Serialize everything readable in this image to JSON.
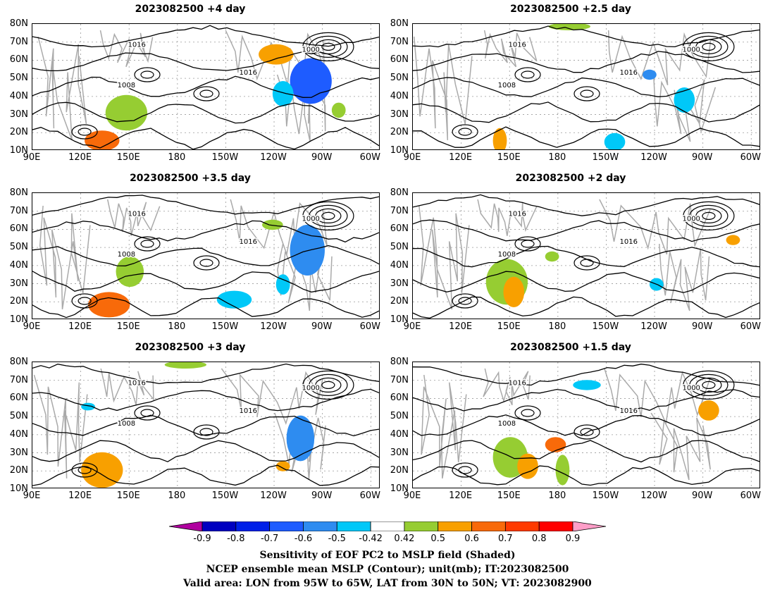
{
  "panels": [
    {
      "title": "2023082500  +4 day"
    },
    {
      "title": "2023082500  +2.5  day"
    },
    {
      "title": "2023082500  +3.5  day"
    },
    {
      "title": "2023082500  +2  day"
    },
    {
      "title": "2023082500  +3  day"
    },
    {
      "title": "2023082500  +1.5  day"
    }
  ],
  "axes": {
    "lat_labels": [
      "80N",
      "70N",
      "60N",
      "50N",
      "40N",
      "30N",
      "20N",
      "10N"
    ],
    "lon_labels": [
      "90E",
      "120E",
      "150E",
      "180",
      "150W",
      "120W",
      "90W",
      "60W"
    ]
  },
  "colorbar": {
    "labels": [
      "-0.9",
      "-0.8",
      "-0.7",
      "-0.6",
      "-0.5",
      "-0.42",
      "0.42",
      "0.5",
      "0.6",
      "0.7",
      "0.8",
      "0.9"
    ],
    "colors": [
      "#b0009f",
      "#0000c0",
      "#0020e8",
      "#1e5cff",
      "#2e8cf0",
      "#00c8f8",
      "#ffffff",
      "#96cd32",
      "#f8a000",
      "#f86a0a",
      "#ff3a00",
      "#ff0000",
      "#ff9ec8"
    ]
  },
  "caption": {
    "line1": "Sensitivity of EOF PC2 to MSLP field (Shaded)",
    "line2": "NCEP ensemble mean MSLP (Contour); unit(mb); IT:2023082500",
    "line3": "Valid area: LON from 95W to 65W, LAT from 30N to 50N; VT: 2023082900"
  },
  "contour_labels": [
    "1016",
    "1008",
    "1000"
  ]
}
